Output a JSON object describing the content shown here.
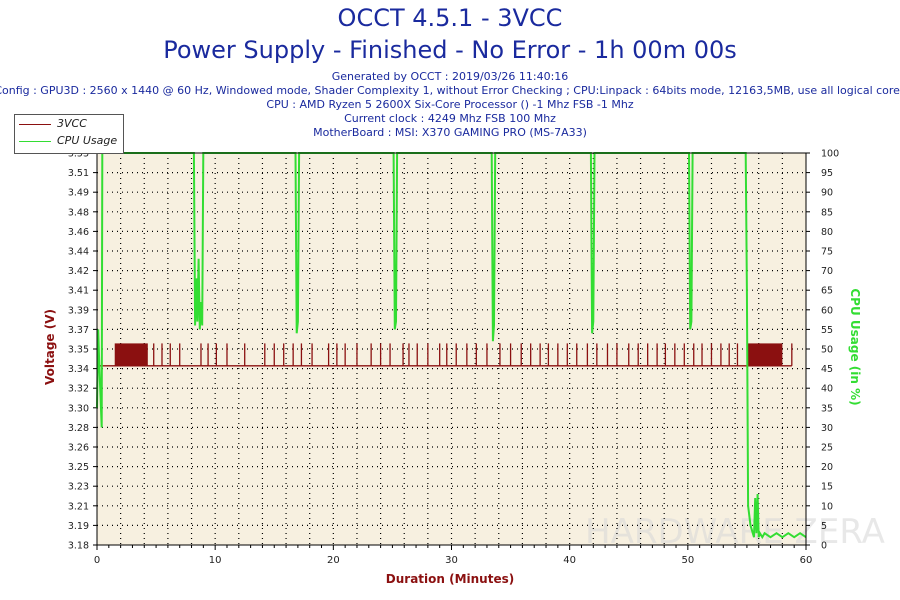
{
  "header": {
    "title": "OCCT 4.5.1 - 3VCC",
    "subtitle": "Power Supply - Finished - No Error - 1h 00m 00s",
    "generated": "Generated by OCCT : 2019/03/26 11:40:16",
    "config": "Config : GPU3D : 2560 x 1440 @ 60 Hz, Windowed mode, Shader Complexity 1, without Error Checking ; CPU:Linpack : 64bits mode, 12163,5MB, use all logical cores",
    "cpu": "CPU : AMD Ryzen 5 2600X Six-Core Processor () -1 Mhz FSB -1 Mhz",
    "clock": "Current clock : 4249 Mhz FSB 100 Mhz",
    "motherboard": "MotherBoard : MSI: X370 GAMING PRO (MS-7A33)"
  },
  "watermark": "HARDWARE ZERA",
  "colors": {
    "title": "#1a2a9e",
    "voltage": "#8b1010",
    "cpu": "#33dd33",
    "plot_bg": "#f7f0e0",
    "grid": "#000000"
  },
  "chart_data": {
    "type": "line",
    "xlabel": "Duration (Minutes)",
    "ylabel_left": "Voltage (V)",
    "ylabel_right": "CPU Usage (in %)",
    "xlim": [
      0,
      60
    ],
    "ylim_left": [
      3.18,
      3.53
    ],
    "ylim_right": [
      0,
      100
    ],
    "x_ticks": [
      "0",
      "10",
      "20",
      "30",
      "40",
      "50",
      "60"
    ],
    "y_ticks_left": [
      "3.18",
      "3.19",
      "3.21",
      "3.23",
      "3.25",
      "3.26",
      "3.28",
      "3.30",
      "3.32",
      "3.34",
      "3.35",
      "3.37",
      "3.39",
      "3.41",
      "3.42",
      "3.44",
      "3.46",
      "3.48",
      "3.49",
      "3.51",
      "3.53"
    ],
    "y_ticks_right": [
      "0",
      "5",
      "10",
      "15",
      "20",
      "25",
      "30",
      "35",
      "40",
      "45",
      "50",
      "55",
      "60",
      "65",
      "70",
      "75",
      "80",
      "85",
      "90",
      "95",
      "100"
    ],
    "grid": true,
    "legend": {
      "position": "top-left",
      "entries": [
        "3VCC",
        "CPU Usage"
      ]
    },
    "series": [
      {
        "name": "3VCC",
        "axis": "left",
        "base": 3.34,
        "spike_top": 3.36,
        "dense_segments": [
          [
            1.5,
            4.3
          ],
          [
            55.0,
            58.0
          ]
        ],
        "spike_times": [
          4.8,
          5.5,
          6.2,
          7.0,
          8.8,
          9.4,
          10.1,
          11.0,
          12.5,
          14.2,
          15.0,
          15.8,
          16.6,
          17.3,
          18.2,
          19.6,
          20.3,
          21.0,
          22.0,
          23.2,
          24.0,
          24.8,
          25.9,
          26.4,
          27.1,
          28.0,
          29.0,
          29.6,
          30.4,
          31.3,
          32.1,
          33.0,
          34.1,
          35.0,
          35.9,
          36.7,
          37.5,
          38.2,
          39.0,
          39.8,
          40.6,
          41.5,
          42.3,
          43.2,
          44.0,
          45.0,
          45.8,
          46.6,
          47.4,
          48.1,
          48.9,
          49.7,
          50.5,
          51.2,
          52.0,
          52.8,
          53.5,
          54.2,
          58.8
        ]
      },
      {
        "name": "CPU Usage",
        "axis": "right",
        "x": [
          0.0,
          0.1,
          0.2,
          0.3,
          0.4,
          0.45,
          8.2,
          8.3,
          8.4,
          8.5,
          8.6,
          8.7,
          8.8,
          8.9,
          9.0,
          16.8,
          16.9,
          17.0,
          17.1,
          25.1,
          25.2,
          25.3,
          25.4,
          33.4,
          33.5,
          33.6,
          33.7,
          41.8,
          41.9,
          42.0,
          42.1,
          50.1,
          50.2,
          50.3,
          50.4,
          54.9,
          55.0,
          55.1,
          55.3,
          55.5,
          55.6,
          55.7,
          55.8,
          55.9,
          56.0,
          56.1,
          56.3,
          56.5,
          57.0,
          57.5,
          58.0,
          58.5,
          59.0,
          59.5,
          60.0
        ],
        "values": [
          35,
          55,
          45,
          38,
          30,
          100,
          100,
          56,
          68,
          57,
          73,
          55,
          62,
          56,
          100,
          100,
          54,
          57,
          100,
          100,
          55,
          57,
          100,
          100,
          52,
          56,
          100,
          100,
          54,
          57,
          100,
          100,
          55,
          57,
          100,
          100,
          65,
          10,
          5,
          3,
          2,
          12,
          3,
          13,
          2,
          3,
          2,
          3,
          2,
          3,
          2,
          3,
          2,
          3,
          2
        ]
      }
    ]
  }
}
